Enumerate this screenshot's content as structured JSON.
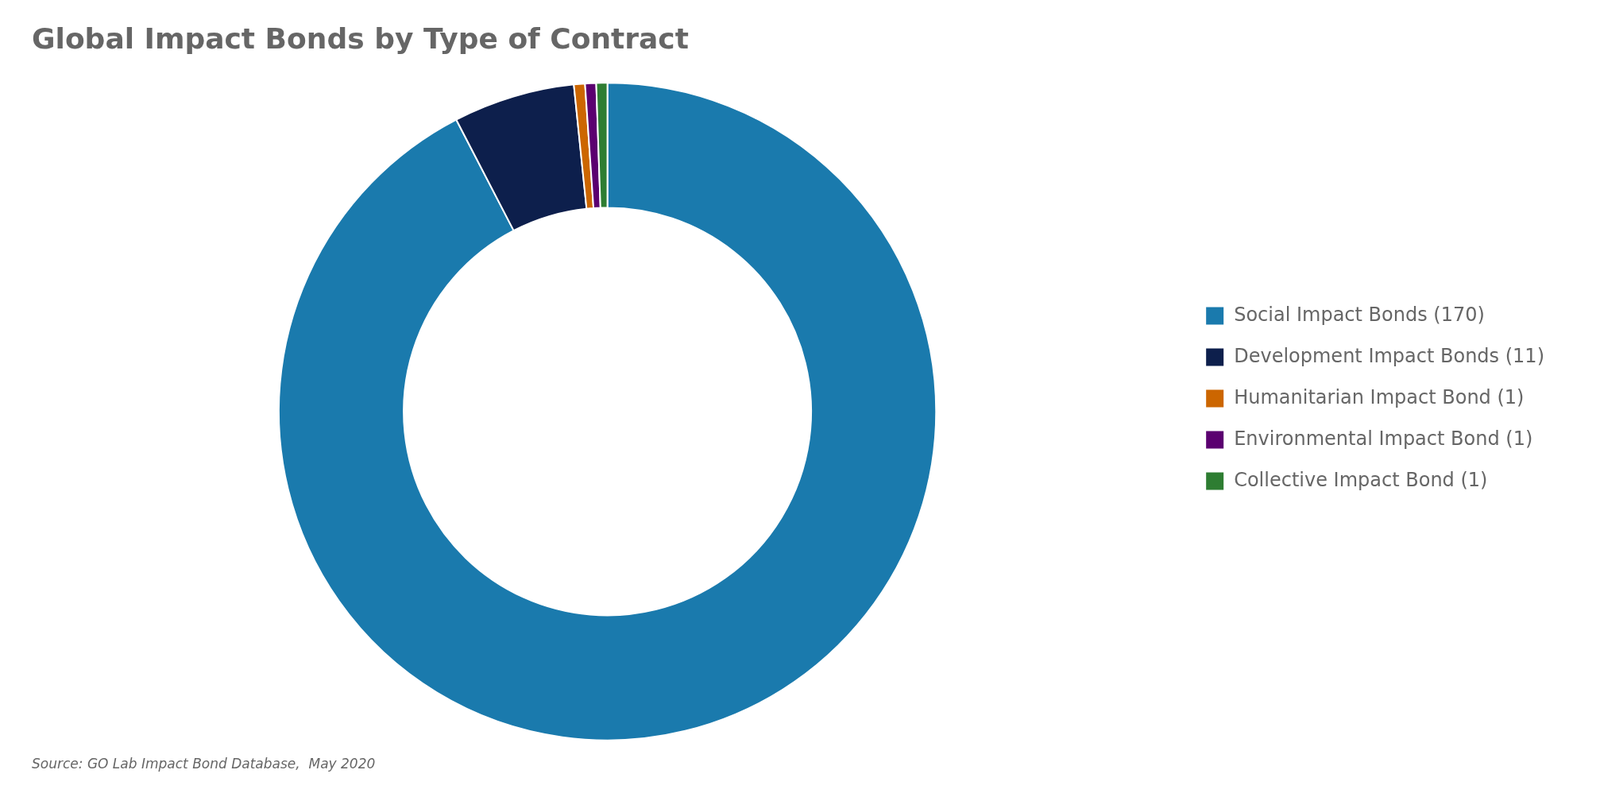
{
  "chart_data": {
    "type": "doughnut",
    "title": "Global Impact Bonds by Type of Contract",
    "annotations": [
      "Source: GO Lab Impact Bond Database,  May 2020"
    ],
    "categories": [
      "Social Impact Bonds (170)",
      "Development Impact Bonds (11)",
      "Humanitarian Impact Bond (1)",
      "Environmental Impact Bond (1)",
      "Collective Impact Bond (1)"
    ],
    "values": [
      170,
      11,
      1,
      1,
      1
    ],
    "colors": [
      "#1a7aad",
      "#0d1f4c",
      "#cc6600",
      "#5b0070",
      "#2e7d32"
    ],
    "legend": "right"
  }
}
